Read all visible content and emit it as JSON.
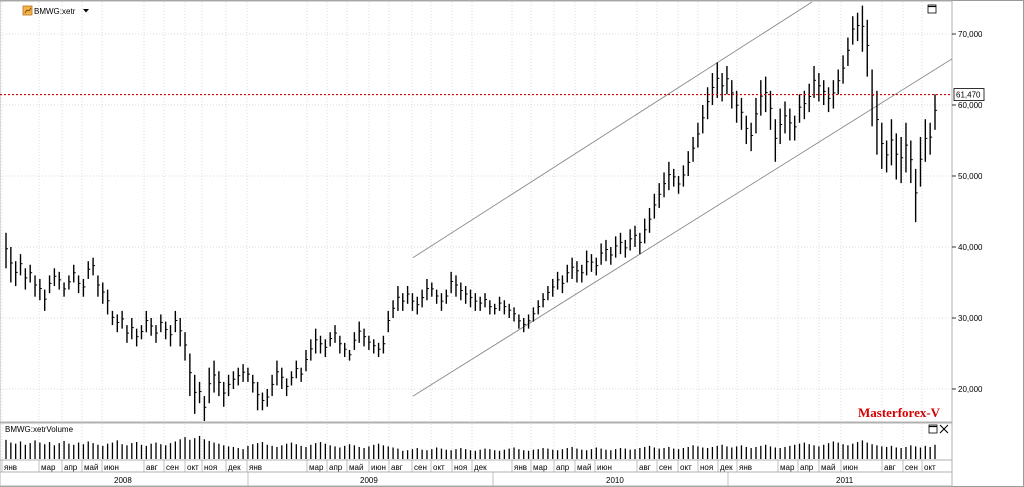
{
  "symbol": {
    "main": "BMWG:xetr",
    "volume": "BMWG:xetrVolume"
  },
  "colors": {
    "price_line": "#cc0000",
    "bars": "#000000",
    "channel": "#8a8a8a",
    "grid": "#cfcfcf",
    "watermark": "#d40000"
  },
  "price_line": {
    "label": "61,470"
  },
  "watermark": "Masterforex-V",
  "icons": [
    "chart-type-icon",
    "dropdown-triangle-icon",
    "maximize-icon",
    "close-icon"
  ],
  "chart_data": [
    {
      "type": "ohlc",
      "ylim": [
        15000,
        74000
      ],
      "y_ticks": [
        {
          "value": 20000,
          "label": "20,000"
        },
        {
          "value": 30000,
          "label": "30,000"
        },
        {
          "value": 40000,
          "label": "40,000"
        },
        {
          "value": 50000,
          "label": "50,000"
        },
        {
          "value": 60000,
          "label": "60,000"
        },
        {
          "value": 70000,
          "label": "70,000"
        }
      ],
      "horizontal_line": 61470,
      "x_axis": {
        "months": [
          "янв",
          "мар",
          "апр",
          "май",
          "июн",
          "авг",
          "сен",
          "окт",
          "ноя",
          "дек",
          "янв",
          "мар",
          "апр",
          "май",
          "июн",
          "авг",
          "сен",
          "окт",
          "ноя",
          "дек",
          "янв",
          "мар",
          "апр",
          "май",
          "июн",
          "авг",
          "сен",
          "окт",
          "ноя",
          "дек",
          "янв",
          "мар",
          "апр",
          "май",
          "июн",
          "авг",
          "сен",
          "окт"
        ],
        "years": [
          "2008",
          "2009",
          "2010",
          "2011"
        ]
      },
      "series": [
        {
          "name": "BMWG:xetr",
          "weekly_high_low": [
            [
              42000,
              37000
            ],
            [
              40000,
              35000
            ],
            [
              38000,
              34500
            ],
            [
              39000,
              36000
            ],
            [
              37000,
              34000
            ],
            [
              37500,
              35000
            ],
            [
              36000,
              33000
            ],
            [
              35500,
              32500
            ],
            [
              34000,
              31000
            ],
            [
              36000,
              33500
            ],
            [
              37000,
              34500
            ],
            [
              36500,
              34000
            ],
            [
              35000,
              33000
            ],
            [
              36000,
              34000
            ],
            [
              37500,
              35000
            ],
            [
              36000,
              33500
            ],
            [
              35500,
              33000
            ],
            [
              38000,
              35500
            ],
            [
              38500,
              36000
            ],
            [
              36000,
              33000
            ],
            [
              35000,
              32000
            ],
            [
              34000,
              30500
            ],
            [
              31000,
              29000
            ],
            [
              30500,
              28000
            ],
            [
              31000,
              28500
            ],
            [
              29000,
              26500
            ],
            [
              30000,
              27000
            ],
            [
              28500,
              26000
            ],
            [
              29000,
              27000
            ],
            [
              31000,
              28000
            ],
            [
              30000,
              27500
            ],
            [
              29000,
              26500
            ],
            [
              30500,
              28000
            ],
            [
              29500,
              27000
            ],
            [
              29000,
              26000
            ],
            [
              31000,
              28000
            ],
            [
              30000,
              26000
            ],
            [
              28000,
              24000
            ],
            [
              25000,
              19000
            ],
            [
              22000,
              16500
            ],
            [
              21000,
              18000
            ],
            [
              19000,
              15500
            ],
            [
              23000,
              18000
            ],
            [
              24000,
              19500
            ],
            [
              22500,
              19000
            ],
            [
              21000,
              17500
            ],
            [
              22000,
              19000
            ],
            [
              22500,
              20000
            ],
            [
              23000,
              20500
            ],
            [
              23500,
              21000
            ],
            [
              23000,
              21000
            ],
            [
              22000,
              19500
            ],
            [
              21000,
              17000
            ],
            [
              19500,
              17000
            ],
            [
              20000,
              17500
            ],
            [
              22000,
              19000
            ],
            [
              24000,
              20500
            ],
            [
              23000,
              20000
            ],
            [
              21500,
              19000
            ],
            [
              22500,
              20500
            ],
            [
              24000,
              21500
            ],
            [
              23000,
              21000
            ],
            [
              25500,
              22500
            ],
            [
              27000,
              24000
            ],
            [
              28500,
              25000
            ],
            [
              27500,
              25000
            ],
            [
              27000,
              24500
            ],
            [
              28000,
              26000
            ],
            [
              29000,
              26500
            ],
            [
              27500,
              25000
            ],
            [
              26500,
              24500
            ],
            [
              25500,
              24000
            ],
            [
              28000,
              25500
            ],
            [
              29500,
              26500
            ],
            [
              28500,
              26000
            ],
            [
              27500,
              25500
            ],
            [
              27000,
              25000
            ],
            [
              26500,
              24500
            ],
            [
              27500,
              25000
            ],
            [
              31000,
              28000
            ],
            [
              32500,
              30000
            ],
            [
              34500,
              31000
            ],
            [
              33500,
              31000
            ],
            [
              34500,
              32000
            ],
            [
              33500,
              31000
            ],
            [
              33000,
              30500
            ],
            [
              34000,
              31500
            ],
            [
              35500,
              32500
            ],
            [
              35000,
              33000
            ],
            [
              34000,
              32000
            ],
            [
              33500,
              31000
            ],
            [
              34000,
              32000
            ],
            [
              36500,
              33500
            ],
            [
              36000,
              33000
            ],
            [
              35000,
              32500
            ],
            [
              34500,
              32000
            ],
            [
              34000,
              31500
            ],
            [
              33500,
              31000
            ],
            [
              33000,
              31000
            ],
            [
              33500,
              31500
            ],
            [
              32500,
              30500
            ],
            [
              32000,
              30500
            ],
            [
              33000,
              31000
            ],
            [
              32500,
              30500
            ],
            [
              32000,
              30000
            ],
            [
              31500,
              29500
            ],
            [
              30500,
              28500
            ],
            [
              30000,
              28000
            ],
            [
              30500,
              28500
            ],
            [
              31500,
              29500
            ],
            [
              32500,
              30500
            ],
            [
              33500,
              31500
            ],
            [
              34500,
              32500
            ],
            [
              35500,
              33000
            ],
            [
              36500,
              34000
            ],
            [
              36000,
              33500
            ],
            [
              37500,
              35000
            ],
            [
              38500,
              35500
            ],
            [
              38000,
              35000
            ],
            [
              37500,
              35000
            ],
            [
              39500,
              36000
            ],
            [
              39000,
              36500
            ],
            [
              38500,
              36000
            ],
            [
              40500,
              37500
            ],
            [
              41000,
              38000
            ],
            [
              40000,
              37500
            ],
            [
              41500,
              38500
            ],
            [
              42000,
              39000
            ],
            [
              41000,
              38500
            ],
            [
              42500,
              39500
            ],
            [
              43000,
              40000
            ],
            [
              42000,
              39000
            ],
            [
              44000,
              40500
            ],
            [
              45500,
              42000
            ],
            [
              47500,
              44000
            ],
            [
              49000,
              45500
            ],
            [
              50500,
              47000
            ],
            [
              52000,
              48000
            ],
            [
              51000,
              48500
            ],
            [
              50000,
              47500
            ],
            [
              51500,
              48500
            ],
            [
              53500,
              50000
            ],
            [
              55500,
              52000
            ],
            [
              57500,
              54000
            ],
            [
              60000,
              56000
            ],
            [
              62500,
              58000
            ],
            [
              64500,
              60000
            ],
            [
              66000,
              61000
            ],
            [
              64500,
              60500
            ],
            [
              65500,
              61500
            ],
            [
              63500,
              59500
            ],
            [
              62000,
              57500
            ],
            [
              61000,
              56500
            ],
            [
              58500,
              54500
            ],
            [
              57500,
              53500
            ],
            [
              61000,
              56000
            ],
            [
              63500,
              58500
            ],
            [
              64000,
              59000
            ],
            [
              62000,
              56500
            ],
            [
              58000,
              52000
            ],
            [
              59500,
              54500
            ],
            [
              60500,
              56000
            ],
            [
              59500,
              55000
            ],
            [
              58500,
              55000
            ],
            [
              61500,
              57500
            ],
            [
              62000,
              58000
            ],
            [
              63000,
              59000
            ],
            [
              65500,
              61000
            ],
            [
              64500,
              60500
            ],
            [
              63500,
              60000
            ],
            [
              62500,
              59000
            ],
            [
              63500,
              59500
            ],
            [
              65000,
              61500
            ],
            [
              67000,
              63000
            ],
            [
              69500,
              65500
            ],
            [
              72500,
              68500
            ],
            [
              73000,
              69000
            ],
            [
              74000,
              67500
            ],
            [
              72000,
              64000
            ],
            [
              65000,
              57000
            ],
            [
              62000,
              53000
            ],
            [
              57500,
              51000
            ],
            [
              55000,
              50500
            ],
            [
              58000,
              51500
            ],
            [
              56000,
              49500
            ],
            [
              55500,
              49000
            ],
            [
              57500,
              50500
            ],
            [
              55000,
              49000
            ],
            [
              51000,
              43500
            ],
            [
              55500,
              48500
            ],
            [
              58000,
              52000
            ],
            [
              57500,
              53000
            ],
            [
              61500,
              56500
            ]
          ],
          "volume": [
            3.5,
            3.0,
            2.8,
            3.2,
            2.6,
            2.9,
            3.4,
            3.0,
            2.7,
            3.1,
            2.5,
            2.9,
            3.3,
            2.8,
            2.6,
            3.0,
            2.7,
            3.2,
            2.9,
            2.6,
            2.4,
            2.8,
            3.0,
            3.4,
            2.7,
            2.5,
            2.9,
            3.1,
            2.6,
            2.4,
            2.8,
            3.0,
            2.7,
            2.5,
            2.9,
            3.2,
            3.6,
            4.0,
            3.5,
            3.8,
            4.2,
            3.6,
            3.3,
            3.0,
            2.8,
            2.5,
            2.3,
            2.2,
            2.0,
            1.8,
            2.4,
            2.7,
            2.9,
            3.1,
            2.6,
            2.4,
            2.2,
            2.5,
            2.8,
            3.0,
            2.7,
            2.4,
            2.2,
            2.6,
            2.9,
            3.1,
            2.8,
            2.5,
            2.3,
            2.1,
            2.4,
            2.7,
            2.5,
            2.2,
            2.0,
            2.3,
            2.6,
            2.8,
            2.5,
            2.3,
            2.1,
            1.9,
            1.5,
            1.6,
            1.8,
            2.0,
            1.7,
            1.6,
            1.8,
            2.1,
            1.9,
            1.7,
            1.6,
            1.8,
            2.0,
            1.8,
            1.6,
            1.5,
            1.7,
            1.9,
            1.8,
            1.6,
            1.5,
            1.7,
            1.9,
            2.1,
            1.8,
            1.6,
            1.5,
            1.7,
            1.8,
            2.0,
            1.9,
            1.7,
            1.6,
            1.8,
            2.0,
            2.2,
            1.9,
            1.7,
            1.6,
            1.8,
            2.1,
            1.9,
            1.7,
            1.6,
            1.8,
            2.0,
            1.9,
            1.7,
            1.8,
            2.0,
            2.2,
            2.4,
            2.1,
            1.9,
            2.0,
            2.2,
            1.9,
            1.8,
            2.0,
            2.2,
            2.5,
            2.3,
            2.1,
            2.0,
            2.2,
            2.4,
            2.6,
            2.3,
            2.1,
            2.3,
            2.5,
            2.2,
            2.0,
            2.2,
            2.4,
            2.6,
            2.3,
            2.1,
            2.0,
            2.2,
            2.4,
            2.6,
            2.8,
            3.0,
            2.7,
            2.5,
            2.3,
            2.6,
            2.9,
            3.2,
            3.0,
            2.7,
            2.5,
            2.8,
            3.1,
            3.4,
            3.0,
            2.7,
            2.5,
            2.3,
            2.2,
            2.4,
            2.1,
            2.0,
            2.2,
            2.5,
            2.3,
            2.1,
            2.4,
            2.2,
            2.6
          ]
        }
      ],
      "channel_lines": [
        {
          "name": "upper",
          "from": [
            "2009-09",
            38500
          ],
          "to": [
            "2011-07",
            74500
          ]
        },
        {
          "name": "lower",
          "from": [
            "2009-09",
            19000
          ],
          "to": [
            "2011-11",
            66500
          ]
        }
      ]
    }
  ]
}
